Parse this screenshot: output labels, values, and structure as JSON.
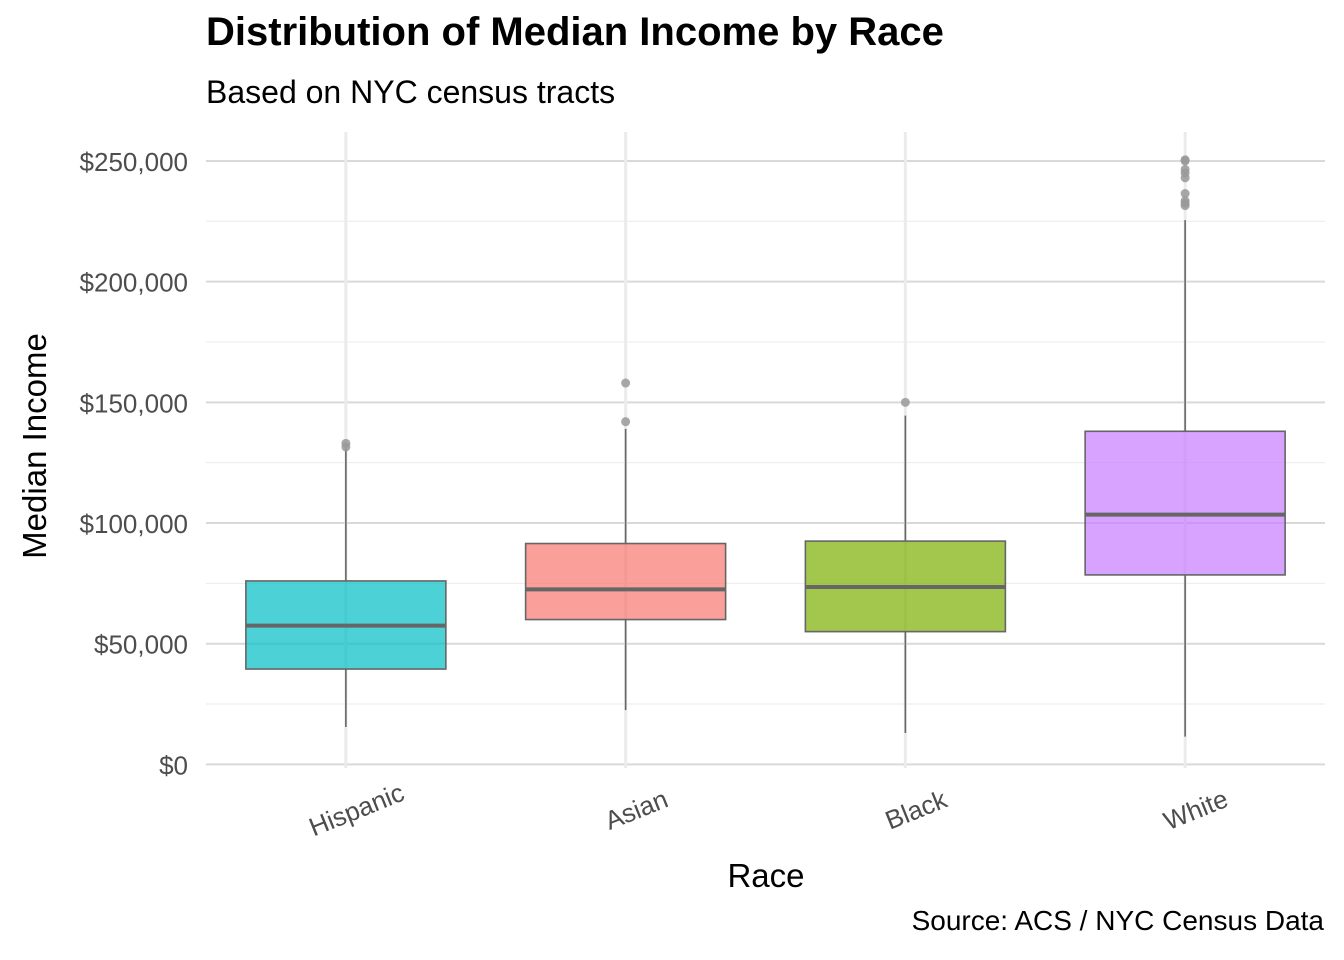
{
  "chart_data": {
    "type": "box",
    "title": "Distribution of Median Income by Race",
    "subtitle": "Based on NYC census tracts",
    "caption": "Source: ACS / NYC Census Data",
    "xlabel": "Race",
    "ylabel": "Median Income",
    "ylim": [
      -1500,
      262000
    ],
    "yticks": [
      0,
      50000,
      100000,
      150000,
      200000,
      250000
    ],
    "ytick_labels": [
      "$0",
      "$50,000",
      "$100,000",
      "$150,000",
      "$200,000",
      "$250,000"
    ],
    "grid": true,
    "legend": "none",
    "categories": [
      "Hispanic",
      "Asian",
      "Black",
      "White"
    ],
    "boxes": [
      {
        "category": "Hispanic",
        "color": "#00BFC4",
        "whisker_low": 15500,
        "q1": 39500,
        "median": 57500,
        "q3": 76000,
        "whisker_high": 131000,
        "outliers": [
          131500,
          133000
        ]
      },
      {
        "category": "Asian",
        "color": "#F8766D",
        "whisker_low": 22500,
        "q1": 60000,
        "median": 72500,
        "q3": 91500,
        "whisker_high": 139000,
        "outliers": [
          142000,
          158000
        ]
      },
      {
        "category": "Black",
        "color": "#7CAE00",
        "whisker_low": 13000,
        "q1": 55000,
        "median": 73500,
        "q3": 92500,
        "whisker_high": 144500,
        "outliers": [
          150000
        ]
      },
      {
        "category": "White",
        "color": "#C77CFF",
        "whisker_low": 11500,
        "q1": 78500,
        "median": 103500,
        "q3": 138000,
        "whisker_high": 225500,
        "outliers": [
          231500,
          232500,
          233500,
          236500,
          243000,
          245000,
          246500,
          250000,
          250500
        ]
      }
    ]
  }
}
